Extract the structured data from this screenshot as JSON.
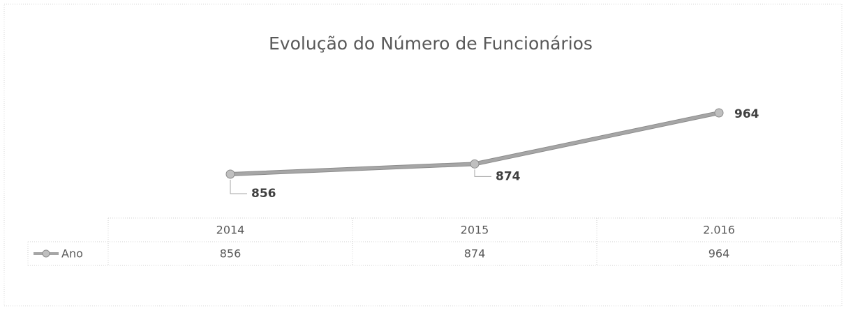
{
  "chart_data": {
    "type": "line",
    "title": "Evolução do Número de Funcionários",
    "categories": [
      "2014",
      "2015",
      "2.016"
    ],
    "series": [
      {
        "name": "Ano",
        "color": "#a6a6a6",
        "values": [
          856,
          874,
          964
        ]
      }
    ],
    "data_labels": true,
    "data_table": true
  }
}
